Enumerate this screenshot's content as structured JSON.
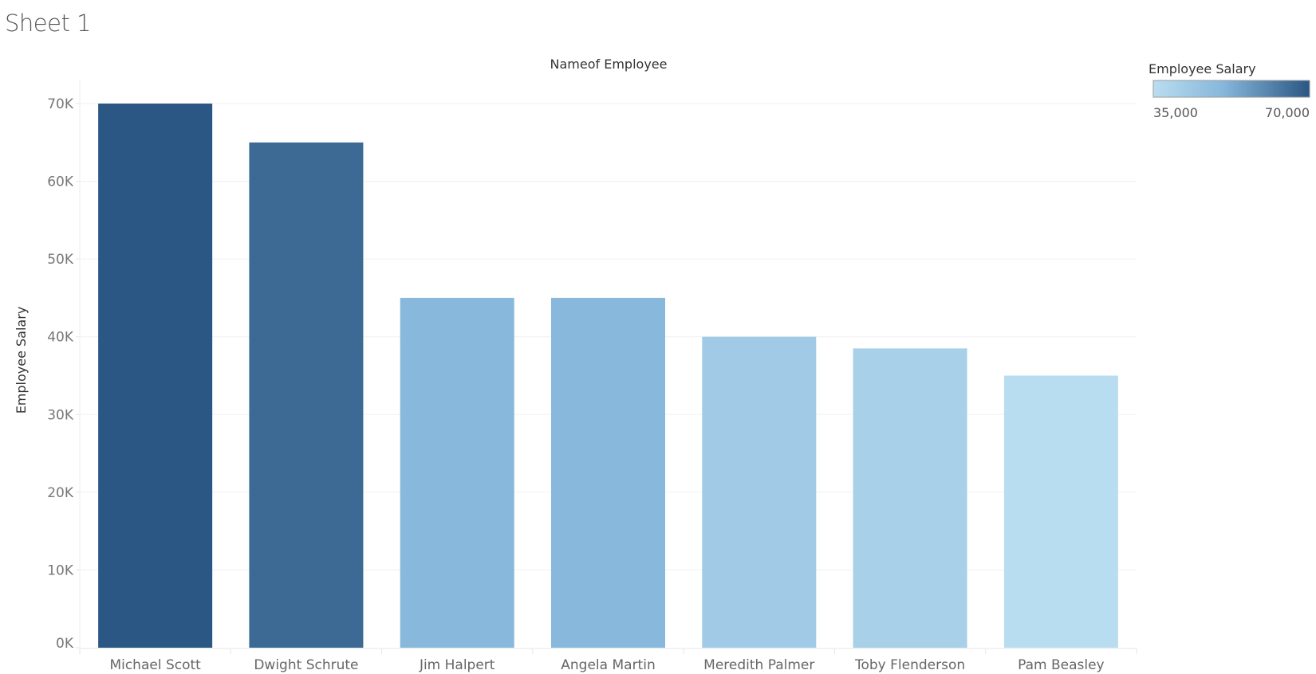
{
  "sheet": {
    "title": "Sheet 1"
  },
  "chart_data": {
    "type": "bar",
    "header_title": "Nameof Employee",
    "ylabel": "Employee Salary",
    "xlabel": "",
    "categories": [
      "Michael Scott",
      "Dwight Schrute",
      "Jim Halpert",
      "Angela Martin",
      "Meredith Palmer",
      "Toby Flenderson",
      "Pam Beasley"
    ],
    "values": [
      70000,
      65000,
      45000,
      45000,
      40000,
      38500,
      35000
    ],
    "ylim": [
      0,
      70000
    ],
    "yticks": [
      0,
      10000,
      20000,
      30000,
      40000,
      50000,
      60000,
      70000
    ],
    "ytick_labels": [
      "0K",
      "10K",
      "20K",
      "30K",
      "40K",
      "50K",
      "60K",
      "70K"
    ],
    "grid": true,
    "color_scale": {
      "title": "Employee Salary",
      "min": 35000,
      "max": 70000,
      "min_label": "35,000",
      "max_label": "70,000",
      "color_low": "#b9ddf0",
      "color_mid": "#86b6da",
      "color_high": "#2a5783"
    },
    "legend_placement": "top-right"
  }
}
